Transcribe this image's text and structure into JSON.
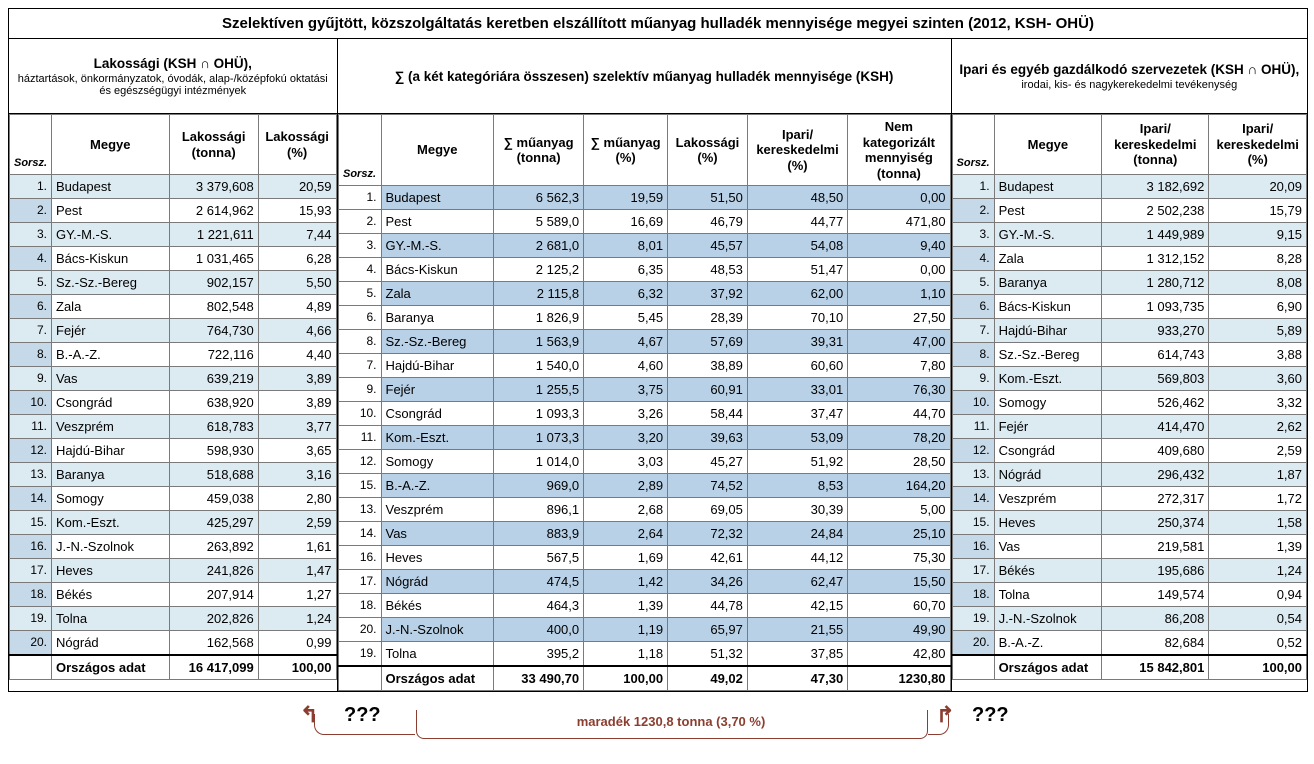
{
  "title": "Szelektíven gyűjtött, közszolgáltatás keretben elszállított műanyag hulladék mennyisége megyei szinten (2012, KSH- OHÜ)",
  "groupA": {
    "main": "Lakossági  (KSH ∩ OHÜ),",
    "sub": "háztartások, önkormányzatok, óvodák, alap-/középfokú oktatási és egészségügyi intézmények"
  },
  "groupB": {
    "main": "∑ (a két kategóriára összesen) szelektív műanyag hulladék mennyisége (KSH)",
    "sub": ""
  },
  "groupC": {
    "main": "Ipari és egyéb gazdálkodó szervezetek (KSH ∩ OHÜ),",
    "sub": "irodai, kis- és nagykerekedelmi tevékenység"
  },
  "hdrA": {
    "sorsz": "Sorsz.",
    "megye": "Megye",
    "c1": "Lakossági (tonna)",
    "c2": "Lakossági (%)"
  },
  "hdrB": {
    "sorsz": "Sorsz.",
    "megye": "Megye",
    "c1": "∑ műanyag (tonna)",
    "c2": "∑ műanyag (%)",
    "c3": "Lakossági (%)",
    "c4": "Ipari/ kereskedelmi (%)",
    "c5": "Nem kategorizált mennyiség (tonna)"
  },
  "hdrC": {
    "sorsz": "Sorsz.",
    "megye": "Megye",
    "c1": "Ipari/ kereskedelmi (tonna)",
    "c2": "Ipari/ kereskedelmi (%)"
  },
  "rowsA": [
    {
      "i": "1.",
      "n": "Budapest",
      "t": "3 379,608",
      "p": "20,59"
    },
    {
      "i": "2.",
      "n": "Pest",
      "t": "2 614,962",
      "p": "15,93"
    },
    {
      "i": "3.",
      "n": "GY.-M.-S.",
      "t": "1 221,611",
      "p": "7,44"
    },
    {
      "i": "4.",
      "n": "Bács-Kiskun",
      "t": "1 031,465",
      "p": "6,28"
    },
    {
      "i": "5.",
      "n": "Sz.-Sz.-Bereg",
      "t": "902,157",
      "p": "5,50"
    },
    {
      "i": "6.",
      "n": "Zala",
      "t": "802,548",
      "p": "4,89"
    },
    {
      "i": "7.",
      "n": "Fejér",
      "t": "764,730",
      "p": "4,66"
    },
    {
      "i": "8.",
      "n": "B.-A.-Z.",
      "t": "722,116",
      "p": "4,40"
    },
    {
      "i": "9.",
      "n": "Vas",
      "t": "639,219",
      "p": "3,89"
    },
    {
      "i": "10.",
      "n": "Csongrád",
      "t": "638,920",
      "p": "3,89"
    },
    {
      "i": "11.",
      "n": "Veszprém",
      "t": "618,783",
      "p": "3,77"
    },
    {
      "i": "12.",
      "n": "Hajdú-Bihar",
      "t": "598,930",
      "p": "3,65"
    },
    {
      "i": "13.",
      "n": "Baranya",
      "t": "518,688",
      "p": "3,16"
    },
    {
      "i": "14.",
      "n": "Somogy",
      "t": "459,038",
      "p": "2,80"
    },
    {
      "i": "15.",
      "n": "Kom.-Eszt.",
      "t": "425,297",
      "p": "2,59"
    },
    {
      "i": "16.",
      "n": "J.-N.-Szolnok",
      "t": "263,892",
      "p": "1,61"
    },
    {
      "i": "17.",
      "n": "Heves",
      "t": "241,826",
      "p": "1,47"
    },
    {
      "i": "18.",
      "n": "Békés",
      "t": "207,914",
      "p": "1,27"
    },
    {
      "i": "19.",
      "n": "Tolna",
      "t": "202,826",
      "p": "1,24"
    },
    {
      "i": "20.",
      "n": "Nógrád",
      "t": "162,568",
      "p": "0,99"
    }
  ],
  "totA": {
    "label": "Országos adat",
    "t": "16 417,099",
    "p": "100,00"
  },
  "rowsB": [
    {
      "i": "1.",
      "n": "Budapest",
      "c1": "6 562,3",
      "c2": "19,59",
      "c3": "51,50",
      "c4": "48,50",
      "c5": "0,00",
      "sh": true
    },
    {
      "i": "2.",
      "n": "Pest",
      "c1": "5 589,0",
      "c2": "16,69",
      "c3": "46,79",
      "c4": "44,77",
      "c5": "471,80",
      "sh": false
    },
    {
      "i": "3.",
      "n": "GY.-M.-S.",
      "c1": "2 681,0",
      "c2": "8,01",
      "c3": "45,57",
      "c4": "54,08",
      "c5": "9,40",
      "sh": true
    },
    {
      "i": "4.",
      "n": "Bács-Kiskun",
      "c1": "2 125,2",
      "c2": "6,35",
      "c3": "48,53",
      "c4": "51,47",
      "c5": "0,00",
      "sh": false
    },
    {
      "i": "5.",
      "n": "Zala",
      "c1": "2 115,8",
      "c2": "6,32",
      "c3": "37,92",
      "c4": "62,00",
      "c5": "1,10",
      "sh": true
    },
    {
      "i": "6.",
      "n": "Baranya",
      "c1": "1 826,9",
      "c2": "5,45",
      "c3": "28,39",
      "c4": "70,10",
      "c5": "27,50",
      "sh": false
    },
    {
      "i": "8.",
      "n": "Sz.-Sz.-Bereg",
      "c1": "1 563,9",
      "c2": "4,67",
      "c3": "57,69",
      "c4": "39,31",
      "c5": "47,00",
      "sh": true
    },
    {
      "i": "7.",
      "n": "Hajdú-Bihar",
      "c1": "1 540,0",
      "c2": "4,60",
      "c3": "38,89",
      "c4": "60,60",
      "c5": "7,80",
      "sh": false
    },
    {
      "i": "9.",
      "n": "Fejér",
      "c1": "1 255,5",
      "c2": "3,75",
      "c3": "60,91",
      "c4": "33,01",
      "c5": "76,30",
      "sh": true
    },
    {
      "i": "10.",
      "n": "Csongrád",
      "c1": "1 093,3",
      "c2": "3,26",
      "c3": "58,44",
      "c4": "37,47",
      "c5": "44,70",
      "sh": false
    },
    {
      "i": "11.",
      "n": "Kom.-Eszt.",
      "c1": "1 073,3",
      "c2": "3,20",
      "c3": "39,63",
      "c4": "53,09",
      "c5": "78,20",
      "sh": true
    },
    {
      "i": "12.",
      "n": "Somogy",
      "c1": "1 014,0",
      "c2": "3,03",
      "c3": "45,27",
      "c4": "51,92",
      "c5": "28,50",
      "sh": false
    },
    {
      "i": "15.",
      "n": "B.-A.-Z.",
      "c1": "969,0",
      "c2": "2,89",
      "c3": "74,52",
      "c4": "8,53",
      "c5": "164,20",
      "sh": true
    },
    {
      "i": "13.",
      "n": "Veszprém",
      "c1": "896,1",
      "c2": "2,68",
      "c3": "69,05",
      "c4": "30,39",
      "c5": "5,00",
      "sh": false
    },
    {
      "i": "14.",
      "n": "Vas",
      "c1": "883,9",
      "c2": "2,64",
      "c3": "72,32",
      "c4": "24,84",
      "c5": "25,10",
      "sh": true
    },
    {
      "i": "16.",
      "n": "Heves",
      "c1": "567,5",
      "c2": "1,69",
      "c3": "42,61",
      "c4": "44,12",
      "c5": "75,30",
      "sh": false
    },
    {
      "i": "17.",
      "n": "Nógrád",
      "c1": "474,5",
      "c2": "1,42",
      "c3": "34,26",
      "c4": "62,47",
      "c5": "15,50",
      "sh": true
    },
    {
      "i": "18.",
      "n": "Békés",
      "c1": "464,3",
      "c2": "1,39",
      "c3": "44,78",
      "c4": "42,15",
      "c5": "60,70",
      "sh": false
    },
    {
      "i": "20.",
      "n": "J.-N.-Szolnok",
      "c1": "400,0",
      "c2": "1,19",
      "c3": "65,97",
      "c4": "21,55",
      "c5": "49,90",
      "sh": true
    },
    {
      "i": "19.",
      "n": "Tolna",
      "c1": "395,2",
      "c2": "1,18",
      "c3": "51,32",
      "c4": "37,85",
      "c5": "42,80",
      "sh": false
    }
  ],
  "totB": {
    "label": "Országos adat",
    "c1": "33 490,70",
    "c2": "100,00",
    "c3": "49,02",
    "c4": "47,30",
    "c5": "1230,80"
  },
  "rowsC": [
    {
      "i": "1.",
      "n": "Budapest",
      "t": "3 182,692",
      "p": "20,09"
    },
    {
      "i": "2.",
      "n": "Pest",
      "t": "2 502,238",
      "p": "15,79"
    },
    {
      "i": "3.",
      "n": "GY.-M.-S.",
      "t": "1 449,989",
      "p": "9,15"
    },
    {
      "i": "4.",
      "n": "Zala",
      "t": "1 312,152",
      "p": "8,28"
    },
    {
      "i": "5.",
      "n": "Baranya",
      "t": "1 280,712",
      "p": "8,08"
    },
    {
      "i": "6.",
      "n": "Bács-Kiskun",
      "t": "1 093,735",
      "p": "6,90"
    },
    {
      "i": "7.",
      "n": "Hajdú-Bihar",
      "t": "933,270",
      "p": "5,89"
    },
    {
      "i": "8.",
      "n": "Sz.-Sz.-Bereg",
      "t": "614,743",
      "p": "3,88"
    },
    {
      "i": "9.",
      "n": "Kom.-Eszt.",
      "t": "569,803",
      "p": "3,60"
    },
    {
      "i": "10.",
      "n": "Somogy",
      "t": "526,462",
      "p": "3,32"
    },
    {
      "i": "11.",
      "n": "Fejér",
      "t": "414,470",
      "p": "2,62"
    },
    {
      "i": "12.",
      "n": "Csongrád",
      "t": "409,680",
      "p": "2,59"
    },
    {
      "i": "13.",
      "n": "Nógrád",
      "t": "296,432",
      "p": "1,87"
    },
    {
      "i": "14.",
      "n": "Veszprém",
      "t": "272,317",
      "p": "1,72"
    },
    {
      "i": "15.",
      "n": "Heves",
      "t": "250,374",
      "p": "1,58"
    },
    {
      "i": "16.",
      "n": "Vas",
      "t": "219,581",
      "p": "1,39"
    },
    {
      "i": "17.",
      "n": "Békés",
      "t": "195,686",
      "p": "1,24"
    },
    {
      "i": "18.",
      "n": "Tolna",
      "t": "149,574",
      "p": "0,94"
    },
    {
      "i": "19.",
      "n": "J.-N.-Szolnok",
      "t": "86,208",
      "p": "0,54"
    },
    {
      "i": "20.",
      "n": "B.-A.-Z.",
      "t": "82,684",
      "p": "0,52"
    }
  ],
  "totC": {
    "label": "Országos adat",
    "t": "15 842,801",
    "p": "100,00"
  },
  "footer": {
    "label": "maradék  1230,8 tonna (3,70 %)",
    "q": "???"
  }
}
